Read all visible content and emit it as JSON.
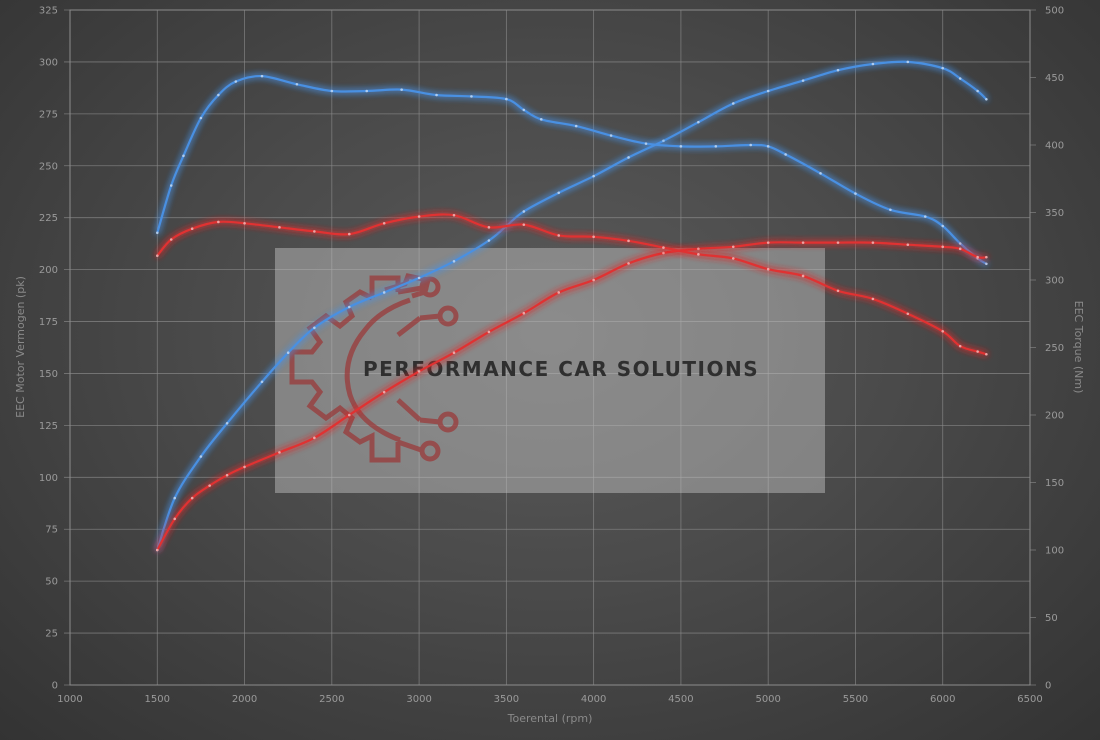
{
  "chart_data": {
    "type": "line",
    "xlabel": "Toerental (rpm)",
    "ylabel": "EEC Motor Vermogen (pk)",
    "y2label": "EEC Torque (Nm)",
    "xlim": [
      1000,
      6500
    ],
    "ylim": [
      0,
      325
    ],
    "y2lim": [
      0,
      500
    ],
    "x_ticks": [
      1000,
      1500,
      2000,
      2500,
      3000,
      3500,
      4000,
      4500,
      5000,
      5500,
      6000,
      6500
    ],
    "y_ticks": [
      0,
      25,
      50,
      75,
      100,
      125,
      150,
      175,
      200,
      225,
      250,
      275,
      300,
      325
    ],
    "y2_ticks": [
      0,
      50,
      100,
      150,
      200,
      250,
      300,
      350,
      400,
      450,
      500
    ],
    "grid": true,
    "series": [
      {
        "key": "tuned_power",
        "axis": "left",
        "color": "#4a90e2",
        "x": [
          1500,
          1600,
          1750,
          1900,
          2100,
          2250,
          2400,
          2600,
          2800,
          3000,
          3200,
          3400,
          3500,
          3600,
          3800,
          4000,
          4200,
          4400,
          4600,
          4800,
          5000,
          5200,
          5400,
          5600,
          5800,
          6000,
          6100,
          6200,
          6250
        ],
        "values": [
          65,
          90,
          110,
          126,
          146,
          160,
          172,
          182,
          189,
          196,
          204,
          214,
          221,
          228,
          237,
          245,
          254,
          262,
          271,
          280,
          286,
          291,
          296,
          299,
          300,
          297,
          292,
          286,
          282
        ]
      },
      {
        "key": "tuned_torque",
        "axis": "right",
        "color": "#4a90e2",
        "x": [
          1500,
          1580,
          1650,
          1750,
          1850,
          1950,
          2100,
          2300,
          2500,
          2700,
          2900,
          3100,
          3300,
          3500,
          3600,
          3700,
          3900,
          4100,
          4300,
          4500,
          4700,
          4900,
          5000,
          5100,
          5300,
          5500,
          5700,
          5900,
          6000,
          6100,
          6200,
          6250
        ],
        "values": [
          335,
          370,
          392,
          420,
          437,
          447,
          451,
          445,
          440,
          440,
          441,
          437,
          436,
          434,
          426,
          419,
          414,
          407,
          401,
          399,
          399,
          400,
          399,
          393,
          379,
          364,
          352,
          347,
          340,
          327,
          316,
          312
        ]
      },
      {
        "key": "stock_power",
        "axis": "left",
        "color": "#e03030",
        "x": [
          1500,
          1600,
          1700,
          1800,
          1900,
          2000,
          2200,
          2400,
          2600,
          2800,
          3000,
          3200,
          3400,
          3600,
          3800,
          4000,
          4200,
          4400,
          4600,
          4800,
          5000,
          5200,
          5400,
          5600,
          5800,
          6000,
          6100,
          6200,
          6250
        ],
        "values": [
          65,
          80,
          90,
          96,
          101,
          105,
          112,
          119,
          130,
          141,
          151,
          160,
          170,
          179,
          189,
          195,
          203,
          208,
          210,
          211,
          213,
          213,
          213,
          213,
          212,
          211,
          210,
          206,
          206
        ]
      },
      {
        "key": "stock_torque",
        "axis": "right",
        "color": "#e03030",
        "x": [
          1500,
          1580,
          1700,
          1850,
          2000,
          2200,
          2400,
          2600,
          2800,
          3000,
          3200,
          3400,
          3600,
          3800,
          4000,
          4200,
          4400,
          4600,
          4800,
          5000,
          5200,
          5400,
          5600,
          5800,
          6000,
          6100,
          6200,
          6250
        ],
        "values": [
          318,
          330,
          338,
          343,
          342,
          339,
          336,
          334,
          342,
          347,
          348,
          339,
          341,
          333,
          332,
          329,
          324,
          319,
          316,
          308,
          303,
          292,
          286,
          275,
          262,
          251,
          247,
          245
        ]
      }
    ]
  },
  "watermark": {
    "brand_text": "PERFORMANCE CAR SOLUTIONS"
  }
}
